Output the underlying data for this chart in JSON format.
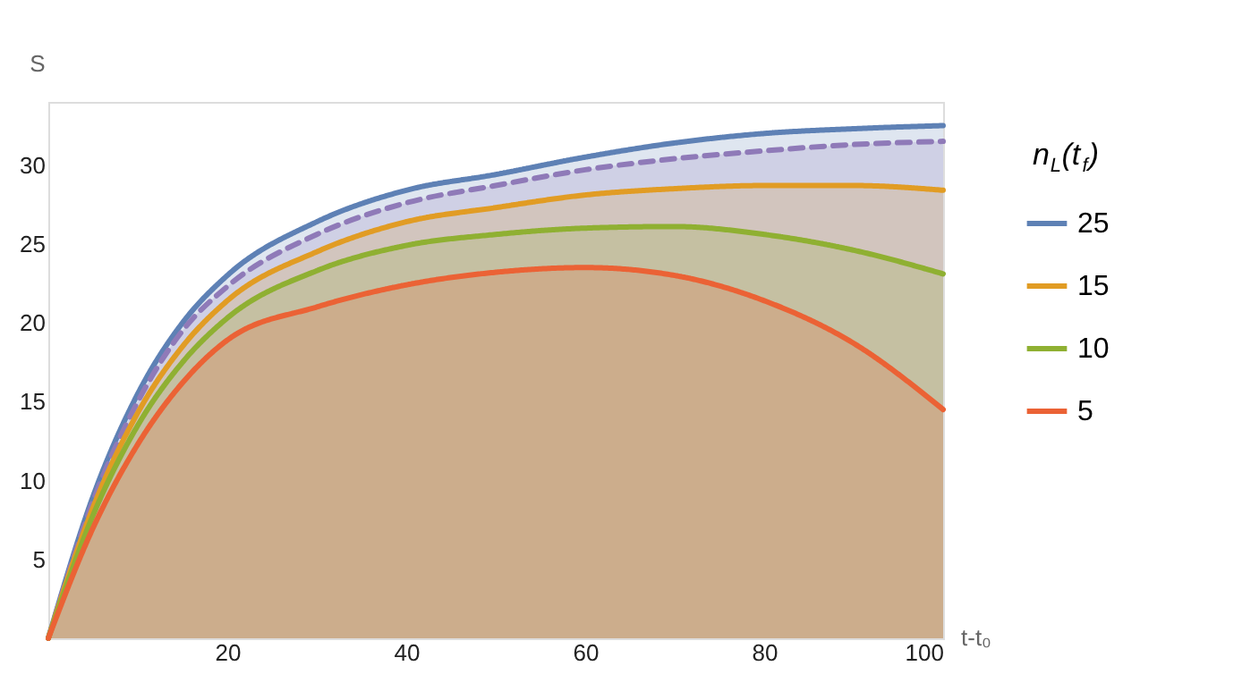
{
  "chart_data": {
    "type": "area",
    "xlabel": "t-t₀",
    "ylabel": "S",
    "legend_title": "n$_{L}$(t$_{f}$)",
    "x": [
      0,
      5,
      10,
      15,
      20,
      30,
      40,
      50,
      60,
      70,
      80,
      90,
      100
    ],
    "series": [
      {
        "name": "25",
        "color": "#5e81b5",
        "values": [
          0,
          9,
          15.5,
          20,
          23.0,
          26.4,
          28.4,
          29.4,
          30.5,
          31.4,
          32.0,
          32.3,
          32.5
        ]
      },
      {
        "color": "#8f7ab8",
        "line_style": "dashed",
        "values": [
          0,
          8.7,
          15,
          19.5,
          22.3,
          25.6,
          27.6,
          28.7,
          29.7,
          30.4,
          30.9,
          31.3,
          31.5
        ]
      },
      {
        "name": "15",
        "color": "#e19c24",
        "values": [
          0,
          8.3,
          14.3,
          18.5,
          21.4,
          24.5,
          26.4,
          27.3,
          28.1,
          28.5,
          28.7,
          28.7,
          28.4
        ]
      },
      {
        "name": "10",
        "color": "#8fb032",
        "values": [
          0,
          7.8,
          13.5,
          17.5,
          20.3,
          23.3,
          24.9,
          25.6,
          26.0,
          26.1,
          25.6,
          24.6,
          23.1
        ]
      },
      {
        "name": "5",
        "color": "#eb6235",
        "values": [
          0,
          7,
          12.3,
          16.2,
          18.9,
          21.0,
          22.4,
          23.2,
          23.5,
          23.0,
          21.4,
          18.7,
          14.5
        ]
      }
    ],
    "xlim": [
      0,
      100
    ],
    "ylim": [
      0,
      34
    ],
    "xticks": [
      20,
      40,
      60,
      80,
      100
    ],
    "yticks": [
      5,
      10,
      15,
      20,
      25,
      30
    ],
    "grid": false,
    "legend": "right",
    "marker": "none"
  }
}
